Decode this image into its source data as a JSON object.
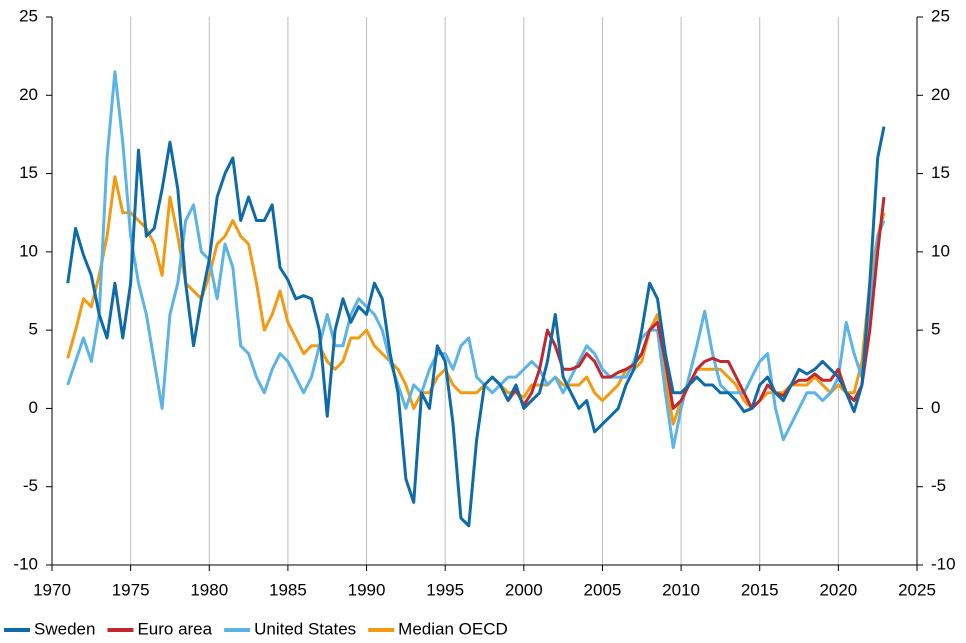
{
  "chart_data": {
    "type": "line",
    "x": [
      1971,
      1971.5,
      1972,
      1972.5,
      1973,
      1973.5,
      1974,
      1974.5,
      1975,
      1975.5,
      1976,
      1976.5,
      1977,
      1977.5,
      1978,
      1978.5,
      1979,
      1979.5,
      1980,
      1980.5,
      1981,
      1981.5,
      1982,
      1982.5,
      1983,
      1983.5,
      1984,
      1984.5,
      1985,
      1985.5,
      1986,
      1986.5,
      1987,
      1987.5,
      1988,
      1988.5,
      1989,
      1989.5,
      1990,
      1990.5,
      1991,
      1991.5,
      1992,
      1992.5,
      1993,
      1993.5,
      1994,
      1994.5,
      1995,
      1995.5,
      1996,
      1996.5,
      1997,
      1997.5,
      1998,
      1998.5,
      1999,
      1999.5,
      2000,
      2000.5,
      2001,
      2001.5,
      2002,
      2002.5,
      2003,
      2003.5,
      2004,
      2004.5,
      2005,
      2005.5,
      2006,
      2006.5,
      2007,
      2007.5,
      2008,
      2008.5,
      2009,
      2009.5,
      2010,
      2010.5,
      2011,
      2011.5,
      2012,
      2012.5,
      2013,
      2013.5,
      2014,
      2014.5,
      2015,
      2015.5,
      2016,
      2016.5,
      2017,
      2017.5,
      2018,
      2018.5,
      2019,
      2019.5,
      2020,
      2020.5,
      2021,
      2021.5,
      2022,
      2022.5,
      2022.9
    ],
    "series": [
      {
        "name": "Sweden",
        "color": "#0e6ba8",
        "values": [
          8,
          11.5,
          9.8,
          8.5,
          6,
          4.5,
          8,
          4.5,
          8,
          16.5,
          11,
          11.5,
          14,
          17,
          14,
          8,
          4,
          7,
          9.5,
          13.5,
          15,
          16,
          12,
          13.5,
          12,
          12,
          13,
          9,
          8.2,
          7,
          7.2,
          7,
          5,
          -0.5,
          5,
          7,
          5.5,
          6.5,
          6,
          8,
          7,
          3.5,
          1,
          -4.5,
          -6,
          1,
          0,
          4,
          3,
          -1,
          -7,
          -7.5,
          -2,
          1.5,
          2,
          1.5,
          0.5,
          1.5,
          0,
          0.5,
          1,
          3,
          6,
          2,
          1,
          0,
          0.5,
          -1.5,
          -1,
          -0.5,
          0,
          1.5,
          2.5,
          5,
          8,
          7,
          3.5,
          1,
          1,
          1.5,
          2,
          1.5,
          1.5,
          1,
          1,
          0.5,
          -0.2,
          0,
          1.5,
          2,
          1,
          0.5,
          1.5,
          2.5,
          2.2,
          2.5,
          3,
          2.5,
          2,
          1,
          -0.2,
          1.5,
          8,
          16,
          18
        ]
      },
      {
        "name": "Euro area",
        "color": "#c0282e",
        "values": [
          null,
          null,
          null,
          null,
          null,
          null,
          null,
          null,
          null,
          null,
          null,
          null,
          null,
          null,
          null,
          null,
          null,
          null,
          null,
          null,
          null,
          null,
          null,
          null,
          null,
          null,
          null,
          null,
          null,
          null,
          null,
          null,
          null,
          null,
          null,
          null,
          null,
          null,
          null,
          null,
          null,
          null,
          null,
          null,
          null,
          null,
          null,
          null,
          null,
          null,
          null,
          null,
          null,
          null,
          null,
          null,
          0.5,
          1.2,
          0.2,
          1,
          2.5,
          5,
          4,
          2.5,
          2.5,
          2.7,
          3.5,
          3,
          2,
          2,
          2.3,
          2.5,
          2.8,
          3.5,
          5,
          5.5,
          3,
          0,
          0.5,
          1.5,
          2.5,
          3,
          3.2,
          3,
          3,
          2,
          1,
          0,
          0.5,
          1.5,
          1,
          0.8,
          1.5,
          1.8,
          1.8,
          2.2,
          1.8,
          1.8,
          2.5,
          1,
          0.5,
          1.5,
          5,
          10,
          13.5
        ]
      },
      {
        "name": "United States",
        "color": "#5cb3e6",
        "values": [
          1.5,
          3,
          4.5,
          3,
          6,
          16,
          21.5,
          17,
          11,
          8,
          6,
          3,
          0,
          6,
          8,
          12,
          13,
          10,
          9.5,
          7,
          10.5,
          9,
          4,
          3.5,
          2,
          1,
          2.5,
          3.5,
          3,
          2,
          1,
          2,
          4,
          6,
          4,
          4,
          6,
          7,
          6.5,
          6,
          5,
          3,
          1.5,
          0,
          1.5,
          1,
          2.5,
          3.5,
          3.5,
          2.5,
          4,
          4.5,
          2,
          1.5,
          1,
          1.5,
          2,
          2,
          2.5,
          3,
          2.5,
          1.5,
          2,
          1,
          2,
          3,
          4,
          3.5,
          2.5,
          2,
          2,
          2,
          3,
          4.5,
          5,
          5,
          1,
          -2.5,
          0,
          2,
          4,
          6.2,
          3.5,
          1.5,
          1,
          1,
          1,
          2,
          3,
          3.5,
          0,
          -2,
          -1,
          0,
          1,
          1,
          0.5,
          1,
          2,
          5.5,
          3.5,
          2,
          6,
          11,
          12
        ]
      },
      {
        "name": "Median OECD",
        "color": "#f29b12",
        "values": [
          3.2,
          5,
          7,
          6.5,
          8.5,
          11,
          14.8,
          12.5,
          12.5,
          12,
          11.5,
          10.5,
          8.5,
          13.5,
          11,
          8,
          7.5,
          7,
          8.5,
          10.5,
          11,
          12,
          11,
          10.5,
          8,
          5,
          6,
          7.5,
          5.5,
          4.5,
          3.5,
          4,
          4,
          3,
          2.5,
          3,
          4.5,
          4.5,
          5,
          4,
          3.5,
          3,
          2.5,
          1.5,
          0,
          1,
          1,
          2,
          2.5,
          1.5,
          1,
          1,
          1,
          1.5,
          2,
          1.5,
          1,
          1,
          0.7,
          1.5,
          1.5,
          1.5,
          2,
          1.5,
          1.5,
          1.5,
          2,
          1,
          0.5,
          1,
          1.5,
          2.5,
          2.5,
          3,
          5,
          6,
          2,
          -1,
          0.5,
          1.5,
          2.5,
          2.5,
          2.5,
          2.5,
          2,
          1.5,
          0.5,
          0,
          0.5,
          1,
          1,
          1,
          1.5,
          1.5,
          1.5,
          2,
          1.5,
          1,
          1.5,
          1,
          1,
          3,
          8,
          11,
          12.5
        ]
      }
    ],
    "xlim": [
      1970,
      2025
    ],
    "xticks": [
      1970,
      1975,
      1980,
      1985,
      1990,
      1995,
      2000,
      2005,
      2010,
      2015,
      2020,
      2025
    ],
    "ylim": [
      -10,
      25
    ],
    "yticks": [
      -10,
      -5,
      0,
      5,
      10,
      15,
      20,
      25
    ],
    "y2lim": [
      -10,
      25
    ],
    "y2ticks": [
      -10,
      -5,
      0,
      5,
      10,
      15,
      20,
      25
    ],
    "grid": true,
    "legend": "bottom"
  }
}
